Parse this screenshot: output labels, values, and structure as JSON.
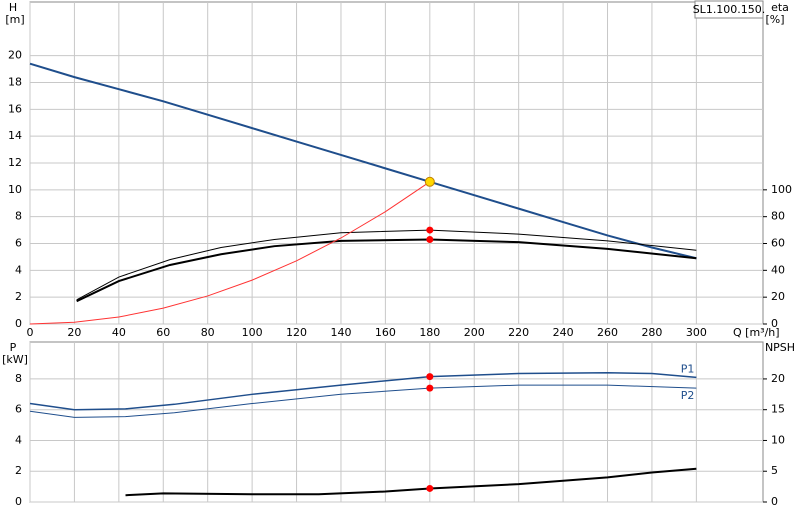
{
  "chart_data": [
    {
      "type": "line",
      "legend": "SL1.100.150.",
      "y_label": "H",
      "y_unit": "[m]",
      "y2_label": "eta",
      "y2_unit": "[%]",
      "x_label": "Q [m³/h]",
      "xlim": [
        0,
        330
      ],
      "xticks": [
        0,
        20,
        40,
        60,
        80,
        100,
        120,
        140,
        160,
        180,
        200,
        220,
        240,
        260,
        280,
        300
      ],
      "ylim": [
        0,
        24
      ],
      "yticks": [
        0,
        2,
        4,
        6,
        8,
        10,
        12,
        14,
        16,
        18,
        20
      ],
      "y2lim": [
        0,
        240
      ],
      "y2ticks": [
        0,
        20,
        40,
        60,
        80,
        100
      ],
      "grid": true,
      "series": [
        {
          "color": "#1f4e8c",
          "linewidth": 2,
          "x": [
            0,
            20,
            40,
            60,
            80,
            100,
            120,
            140,
            160,
            180,
            200,
            220,
            240,
            260,
            280,
            300
          ],
          "values": [
            19.4,
            18.4,
            17.5,
            16.6,
            15.6,
            14.6,
            13.6,
            12.6,
            11.6,
            10.6,
            9.6,
            8.6,
            7.6,
            6.6,
            5.7,
            4.9
          ]
        },
        {
          "color": "#000000",
          "linewidth": 1,
          "axis": "y2",
          "x": [
            21,
            40,
            63,
            86,
            110,
            140,
            180,
            220,
            260,
            300
          ],
          "values": [
            18,
            35,
            48,
            57,
            63,
            68,
            70,
            67,
            62,
            55
          ]
        },
        {
          "color": "#000000",
          "linewidth": 2,
          "axis": "y2",
          "x": [
            21,
            40,
            63,
            86,
            110,
            140,
            180,
            220,
            260,
            300
          ],
          "values": [
            17,
            32,
            44,
            52,
            58,
            62,
            63,
            61,
            56,
            49
          ]
        },
        {
          "color": "#ff3333",
          "linewidth": 1,
          "x": [
            0,
            20,
            40,
            60,
            80,
            100,
            120,
            140,
            160,
            180
          ],
          "values": [
            0,
            0.13,
            0.52,
            1.18,
            2.09,
            3.27,
            4.71,
            6.41,
            8.37,
            10.6
          ]
        }
      ],
      "points": [
        {
          "x": 180,
          "y": 70,
          "axis": "y2",
          "color": "#ff0000"
        },
        {
          "x": 180,
          "y": 63,
          "axis": "y2",
          "color": "#ff0000"
        },
        {
          "x": 180,
          "y": 10.6,
          "color": "#ffd700"
        }
      ]
    },
    {
      "type": "line",
      "y_label": "P",
      "y_unit": "[kW]",
      "y2_label": "NPSH",
      "xlim": [
        0,
        330
      ],
      "ylim": [
        0,
        10.4
      ],
      "yticks": [
        0,
        2,
        4,
        6,
        8
      ],
      "y2lim": [
        0,
        26
      ],
      "y2ticks": [
        0,
        5,
        10,
        15,
        20
      ],
      "grid": true,
      "series": [
        {
          "name": "P1",
          "color": "#1f4e8c",
          "linewidth": 1.5,
          "x": [
            0,
            20,
            43,
            65,
            100,
            140,
            180,
            220,
            260,
            280,
            300
          ],
          "values": [
            6.4,
            6.0,
            6.05,
            6.35,
            7.0,
            7.6,
            8.15,
            8.35,
            8.4,
            8.35,
            8.1
          ]
        },
        {
          "name": "P2",
          "color": "#1f4e8c",
          "linewidth": 1,
          "x": [
            0,
            20,
            43,
            65,
            100,
            140,
            180,
            220,
            260,
            300
          ],
          "values": [
            5.9,
            5.5,
            5.55,
            5.8,
            6.4,
            7.0,
            7.4,
            7.6,
            7.6,
            7.4
          ]
        },
        {
          "color": "#000000",
          "linewidth": 2,
          "axis": "y2",
          "x": [
            43,
            60,
            100,
            130,
            160,
            180,
            220,
            260,
            280,
            300
          ],
          "values": [
            1.1,
            1.4,
            1.25,
            1.25,
            1.7,
            2.2,
            2.9,
            4.0,
            4.8,
            5.4
          ]
        }
      ],
      "points": [
        {
          "x": 180,
          "y": 8.15,
          "color": "#ff0000"
        },
        {
          "x": 180,
          "y": 7.4,
          "color": "#ff0000"
        },
        {
          "x": 180,
          "y": 2.2,
          "axis": "y2",
          "color": "#ff0000"
        }
      ]
    }
  ]
}
